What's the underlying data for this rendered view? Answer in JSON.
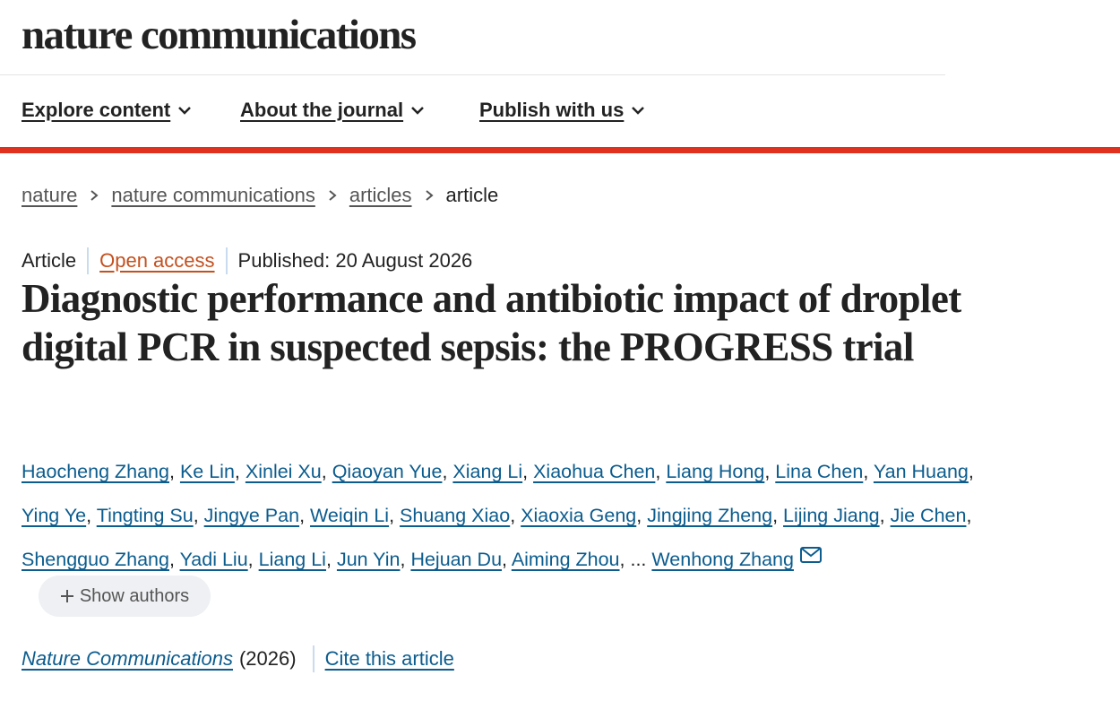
{
  "header": {
    "logo": "nature communications",
    "nav": [
      "Explore content",
      "About the journal",
      "Publish with us"
    ]
  },
  "breadcrumb": {
    "links": [
      "nature",
      "nature communications",
      "articles"
    ],
    "current": "article"
  },
  "meta": {
    "type": "Article",
    "access": "Open access",
    "published": "Published: 20 August 2026"
  },
  "title": "Diagnostic performance and antibiotic impact of droplet digital PCR in suspected sepsis: the PROGRESS trial",
  "authors": {
    "separator": ",",
    "ellipsis": "...",
    "lines": [
      [
        "Haocheng Zhang",
        "Ke Lin",
        "Xinlei Xu",
        "Qiaoyan Yue",
        "Xiang Li",
        "Xiaohua Chen",
        "Liang Hong",
        "Lina Chen",
        "Yan Huang"
      ],
      [
        "Ying Ye",
        "Tingting Su",
        "Jingye Pan",
        "Weiqin Li",
        "Shuang Xiao",
        "Xiaoxia Geng",
        "Jingjing Zheng",
        "Lijing Jiang",
        "Jie Chen"
      ],
      [
        "Shengguo Zhang",
        "Yadi Liu",
        "Liang Li",
        "Jun Yin",
        "Hejuan Du",
        "Aiming Zhou"
      ]
    ],
    "corresponding": "Wenhong Zhang",
    "show_button": "Show authors"
  },
  "citation": {
    "journal": "Nature Communications",
    "year": "(2026)",
    "cite": "Cite this article"
  }
}
